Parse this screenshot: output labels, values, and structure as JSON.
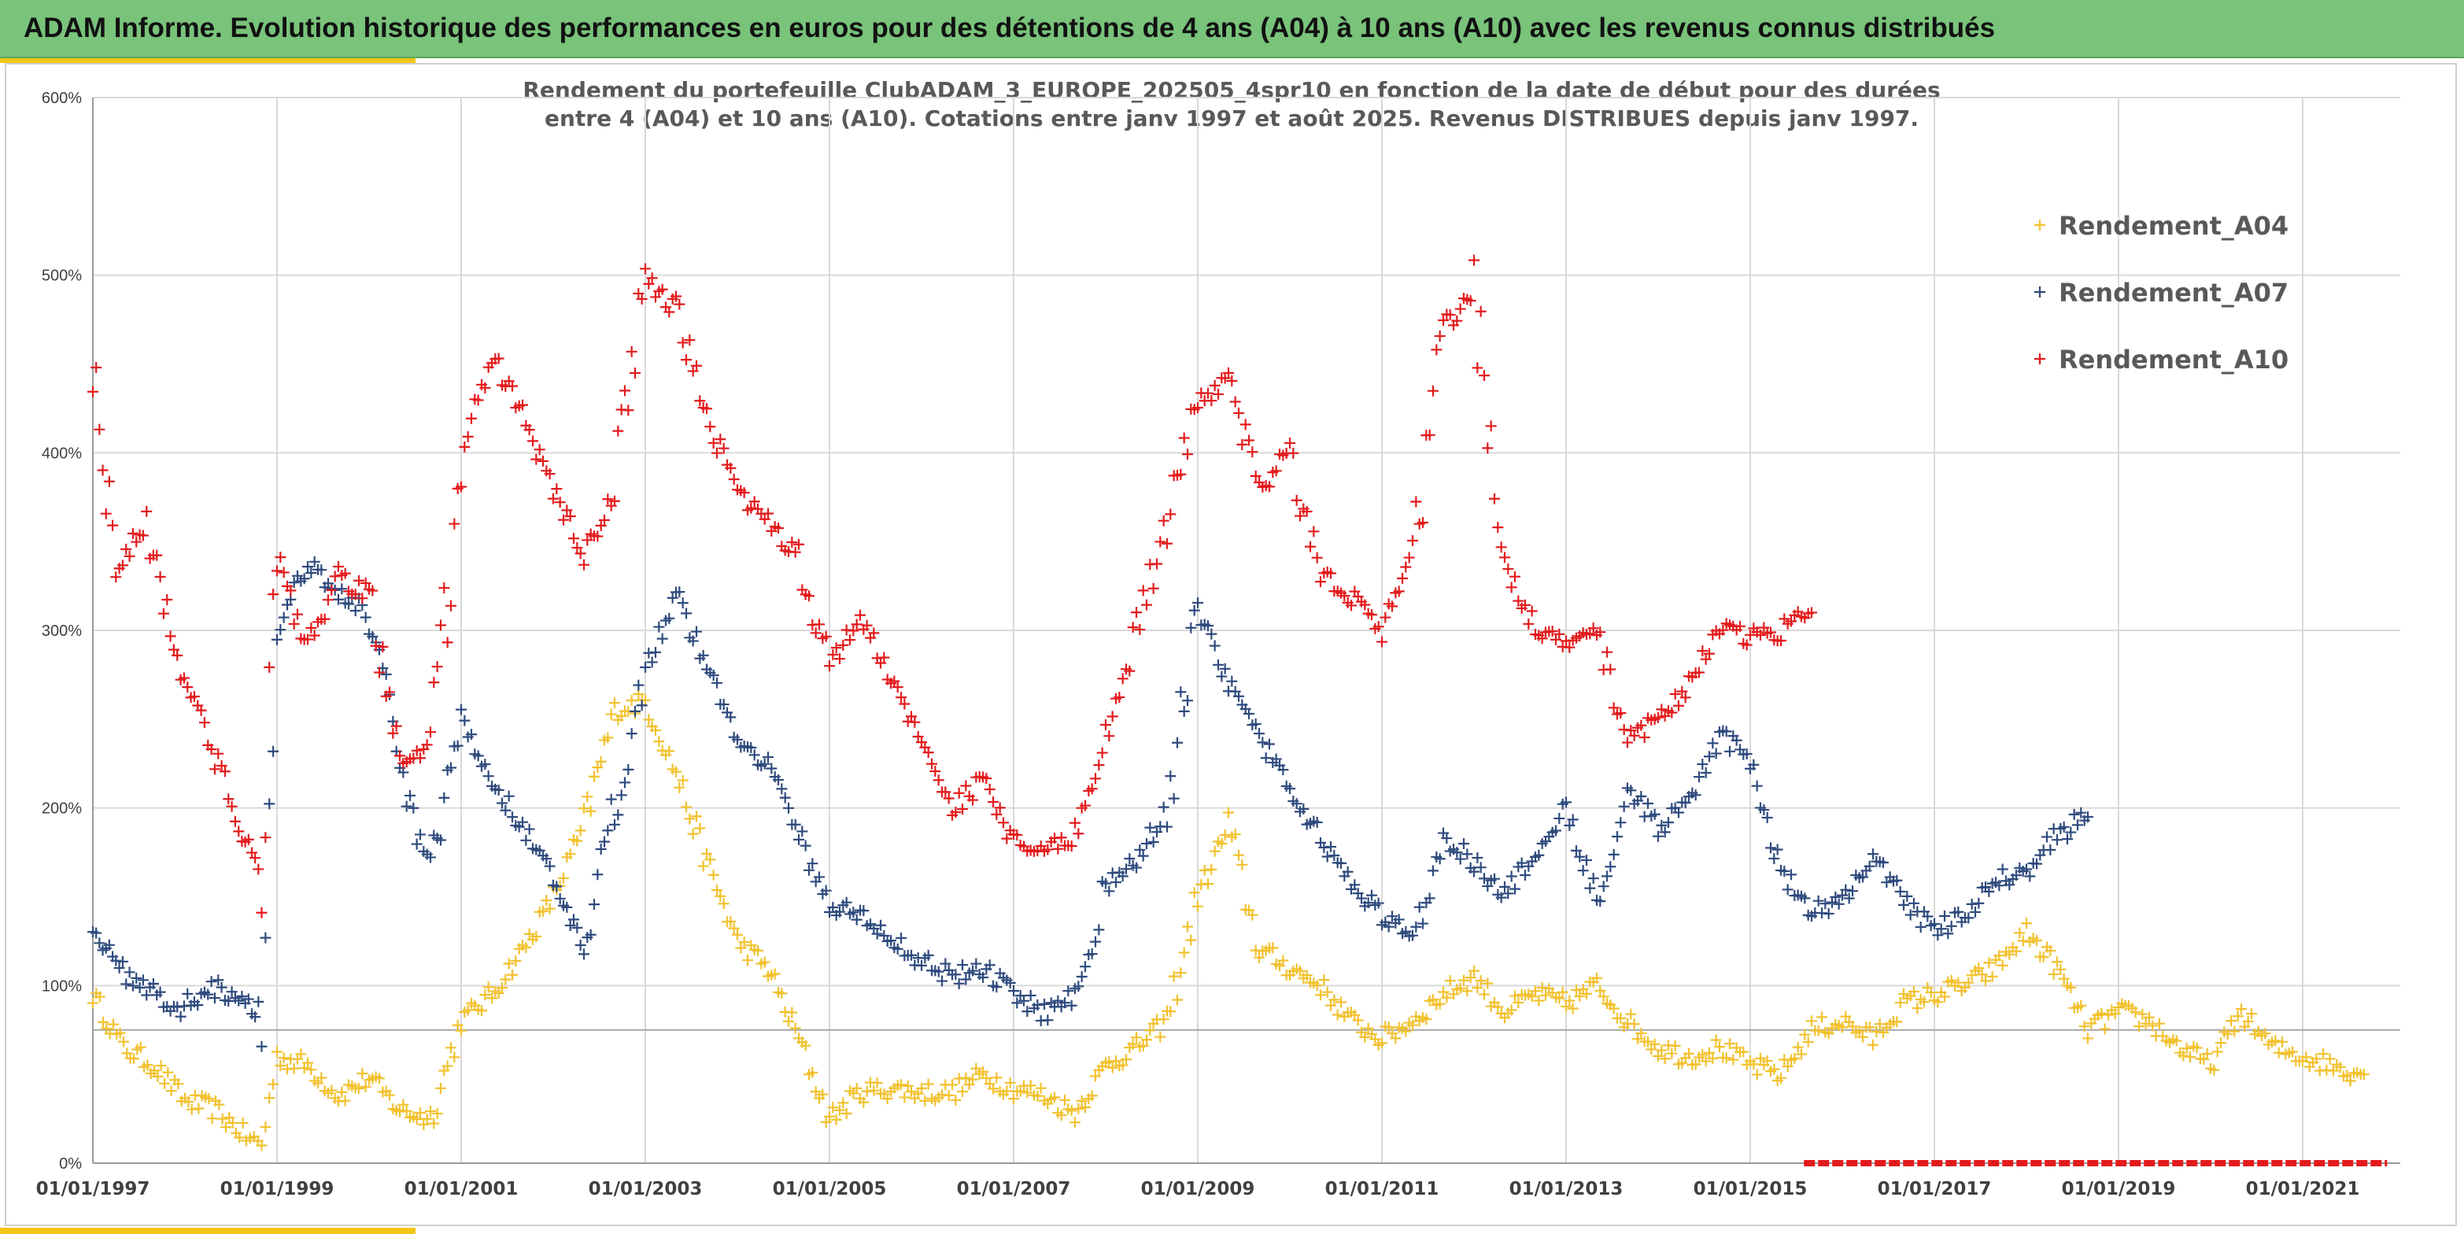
{
  "header": {
    "title": "ADAM Informe. Evolution historique des performances en euros pour des détentions de 4 ans (A04) à 10 ans (A10) avec les revenus connus distribués"
  },
  "chart_data": {
    "type": "scatter",
    "title_line1": "Rendement du portefeuille ClubADAM_3_EUROPE_202505_4spr10  en fonction de la date de début pour des durées",
    "title_line2": "entre 4 (A04) et 10 ans (A10). Cotations entre janv 1997 et août 2025. Revenus DISTRIBUES depuis janv 1997.",
    "xlabel": "",
    "ylabel": "",
    "x_range": [
      "01/01/1997",
      "31/12/2021"
    ],
    "x_ticks": [
      "01/01/1997",
      "01/01/1999",
      "01/01/2001",
      "01/01/2003",
      "01/01/2005",
      "01/01/2007",
      "01/01/2009",
      "01/01/2011",
      "01/01/2013",
      "01/01/2015",
      "01/01/2017",
      "01/01/2019",
      "01/01/2021"
    ],
    "y_ticks": [
      "0%",
      "100%",
      "200%",
      "300%",
      "400%",
      "500%",
      "600%"
    ],
    "ylim": [
      0,
      600
    ],
    "grid": true,
    "legend_position": "top-right",
    "reference_line_y": 75,
    "series": [
      {
        "name": "Rendement_A04",
        "color": "#f2c12e",
        "marker": "+",
        "points": [
          [
            "1997-01",
            95
          ],
          [
            "1997-05",
            65
          ],
          [
            "1997-09",
            55
          ],
          [
            "1998-01",
            35
          ],
          [
            "1998-05",
            30
          ],
          [
            "1998-09",
            15
          ],
          [
            "1998-11",
            10
          ],
          [
            "1999-01",
            60
          ],
          [
            "1999-05",
            55
          ],
          [
            "1999-09",
            38
          ],
          [
            "2000-01",
            48
          ],
          [
            "2000-05",
            30
          ],
          [
            "2000-09",
            25
          ],
          [
            "2001-01",
            80
          ],
          [
            "2001-05",
            95
          ],
          [
            "2001-09",
            120
          ],
          [
            "2002-01",
            150
          ],
          [
            "2002-05",
            190
          ],
          [
            "2002-09",
            255
          ],
          [
            "2003-01",
            260
          ],
          [
            "2003-05",
            220
          ],
          [
            "2003-09",
            170
          ],
          [
            "2004-01",
            125
          ],
          [
            "2004-05",
            110
          ],
          [
            "2004-09",
            70
          ],
          [
            "2005-01",
            25
          ],
          [
            "2005-05",
            40
          ],
          [
            "2005-09",
            42
          ],
          [
            "2006-01",
            40
          ],
          [
            "2006-05",
            40
          ],
          [
            "2006-09",
            50
          ],
          [
            "2007-01",
            42
          ],
          [
            "2007-05",
            38
          ],
          [
            "2007-09",
            28
          ],
          [
            "2008-01",
            55
          ],
          [
            "2008-05",
            65
          ],
          [
            "2008-09",
            80
          ],
          [
            "2009-01",
            150
          ],
          [
            "2009-05",
            190
          ],
          [
            "2009-09",
            120
          ],
          [
            "2010-01",
            110
          ],
          [
            "2010-05",
            100
          ],
          [
            "2010-09",
            80
          ],
          [
            "2011-01",
            70
          ],
          [
            "2011-05",
            80
          ],
          [
            "2011-09",
            95
          ],
          [
            "2012-01",
            105
          ],
          [
            "2012-05",
            85
          ],
          [
            "2012-09",
            95
          ],
          [
            "2013-01",
            90
          ],
          [
            "2013-05",
            100
          ],
          [
            "2013-09",
            80
          ],
          [
            "2014-01",
            65
          ],
          [
            "2014-05",
            60
          ],
          [
            "2014-09",
            65
          ],
          [
            "2015-01",
            55
          ],
          [
            "2015-05",
            50
          ],
          [
            "2015-09",
            75
          ],
          [
            "2016-01",
            80
          ],
          [
            "2016-05",
            70
          ],
          [
            "2016-09",
            90
          ],
          [
            "2017-01",
            95
          ],
          [
            "2017-05",
            100
          ],
          [
            "2017-09",
            110
          ],
          [
            "2018-01",
            130
          ],
          [
            "2018-05",
            110
          ],
          [
            "2018-09",
            75
          ],
          [
            "2019-01",
            85
          ],
          [
            "2019-05",
            80
          ],
          [
            "2019-09",
            65
          ],
          [
            "2020-01",
            55
          ],
          [
            "2020-05",
            85
          ],
          [
            "2020-09",
            65
          ],
          [
            "2021-01",
            60
          ],
          [
            "2021-05",
            55
          ],
          [
            "2021-09",
            50
          ]
        ]
      },
      {
        "name": "Rendement_A07",
        "color": "#2e4a7d",
        "marker": "+",
        "points": [
          [
            "1997-01",
            135
          ],
          [
            "1997-04",
            110
          ],
          [
            "1997-08",
            100
          ],
          [
            "1997-12",
            85
          ],
          [
            "1998-04",
            100
          ],
          [
            "1998-08",
            95
          ],
          [
            "1998-11",
            85
          ],
          [
            "1999-01",
            300
          ],
          [
            "1999-05",
            340
          ],
          [
            "1999-09",
            320
          ],
          [
            "2000-01",
            310
          ],
          [
            "2000-05",
            220
          ],
          [
            "2000-09",
            160
          ],
          [
            "2001-01",
            250
          ],
          [
            "2001-05",
            215
          ],
          [
            "2001-09",
            190
          ],
          [
            "2002-01",
            160
          ],
          [
            "2002-05",
            115
          ],
          [
            "2002-09",
            200
          ],
          [
            "2003-01",
            280
          ],
          [
            "2003-05",
            320
          ],
          [
            "2003-09",
            280
          ],
          [
            "2004-01",
            240
          ],
          [
            "2004-05",
            225
          ],
          [
            "2004-09",
            185
          ],
          [
            "2005-01",
            145
          ],
          [
            "2005-05",
            140
          ],
          [
            "2005-09",
            125
          ],
          [
            "2006-01",
            115
          ],
          [
            "2006-05",
            105
          ],
          [
            "2006-09",
            110
          ],
          [
            "2007-01",
            95
          ],
          [
            "2007-05",
            85
          ],
          [
            "2007-09",
            95
          ],
          [
            "2008-01",
            155
          ],
          [
            "2008-05",
            170
          ],
          [
            "2008-09",
            200
          ],
          [
            "2009-01",
            310
          ],
          [
            "2009-05",
            270
          ],
          [
            "2009-09",
            240
          ],
          [
            "2010-01",
            210
          ],
          [
            "2010-05",
            185
          ],
          [
            "2010-09",
            155
          ],
          [
            "2011-01",
            140
          ],
          [
            "2011-05",
            125
          ],
          [
            "2011-09",
            185
          ],
          [
            "2012-01",
            170
          ],
          [
            "2012-05",
            150
          ],
          [
            "2012-09",
            175
          ],
          [
            "2013-01",
            200
          ],
          [
            "2013-05",
            150
          ],
          [
            "2013-09",
            210
          ],
          [
            "2014-01",
            190
          ],
          [
            "2014-05",
            200
          ],
          [
            "2014-09",
            240
          ],
          [
            "2015-01",
            230
          ],
          [
            "2015-05",
            165
          ],
          [
            "2015-09",
            140
          ],
          [
            "2016-01",
            150
          ],
          [
            "2016-05",
            170
          ],
          [
            "2016-09",
            150
          ],
          [
            "2017-01",
            130
          ],
          [
            "2017-05",
            140
          ],
          [
            "2017-09",
            160
          ],
          [
            "2018-01",
            165
          ],
          [
            "2018-05",
            185
          ],
          [
            "2018-09",
            195
          ]
        ]
      },
      {
        "name": "Rendement_A10",
        "color": "#e31a1c",
        "marker": "+",
        "points": [
          [
            "1997-01",
            450
          ],
          [
            "1997-04",
            335
          ],
          [
            "1997-08",
            360
          ],
          [
            "1997-12",
            285
          ],
          [
            "1998-04",
            240
          ],
          [
            "1998-08",
            190
          ],
          [
            "1998-11",
            165
          ],
          [
            "1999-01",
            340
          ],
          [
            "1999-05",
            290
          ],
          [
            "1999-09",
            330
          ],
          [
            "2000-01",
            320
          ],
          [
            "2000-05",
            230
          ],
          [
            "2000-09",
            230
          ],
          [
            "2001-01",
            390
          ],
          [
            "2001-05",
            455
          ],
          [
            "2001-09",
            420
          ],
          [
            "2002-01",
            380
          ],
          [
            "2002-05",
            340
          ],
          [
            "2002-09",
            380
          ],
          [
            "2003-01",
            500
          ],
          [
            "2003-05",
            480
          ],
          [
            "2003-09",
            420
          ],
          [
            "2004-01",
            380
          ],
          [
            "2004-05",
            360
          ],
          [
            "2004-09",
            340
          ],
          [
            "2005-01",
            280
          ],
          [
            "2005-05",
            310
          ],
          [
            "2005-09",
            270
          ],
          [
            "2006-01",
            240
          ],
          [
            "2006-05",
            200
          ],
          [
            "2006-09",
            215
          ],
          [
            "2007-01",
            180
          ],
          [
            "2007-05",
            175
          ],
          [
            "2007-09",
            185
          ],
          [
            "2008-01",
            240
          ],
          [
            "2008-05",
            300
          ],
          [
            "2008-09",
            360
          ],
          [
            "2009-01",
            430
          ],
          [
            "2009-05",
            440
          ],
          [
            "2009-09",
            380
          ],
          [
            "2010-01",
            400
          ],
          [
            "2010-05",
            330
          ],
          [
            "2010-09",
            320
          ],
          [
            "2011-01",
            300
          ],
          [
            "2011-05",
            340
          ],
          [
            "2011-09",
            470
          ],
          [
            "2012-01",
            490
          ],
          [
            "2012-05",
            340
          ],
          [
            "2012-09",
            300
          ],
          [
            "2013-01",
            290
          ],
          [
            "2013-05",
            300
          ],
          [
            "2013-09",
            240
          ],
          [
            "2014-01",
            250
          ],
          [
            "2014-05",
            270
          ],
          [
            "2014-09",
            300
          ],
          [
            "2015-01",
            295
          ],
          [
            "2015-05",
            300
          ],
          [
            "2015-09",
            310
          ]
        ]
      },
      {
        "name": "",
        "color": "#e31a1c",
        "marker": "line",
        "points": [
          [
            "2015-08",
            0
          ],
          [
            "2021-12",
            0
          ]
        ]
      }
    ]
  }
}
